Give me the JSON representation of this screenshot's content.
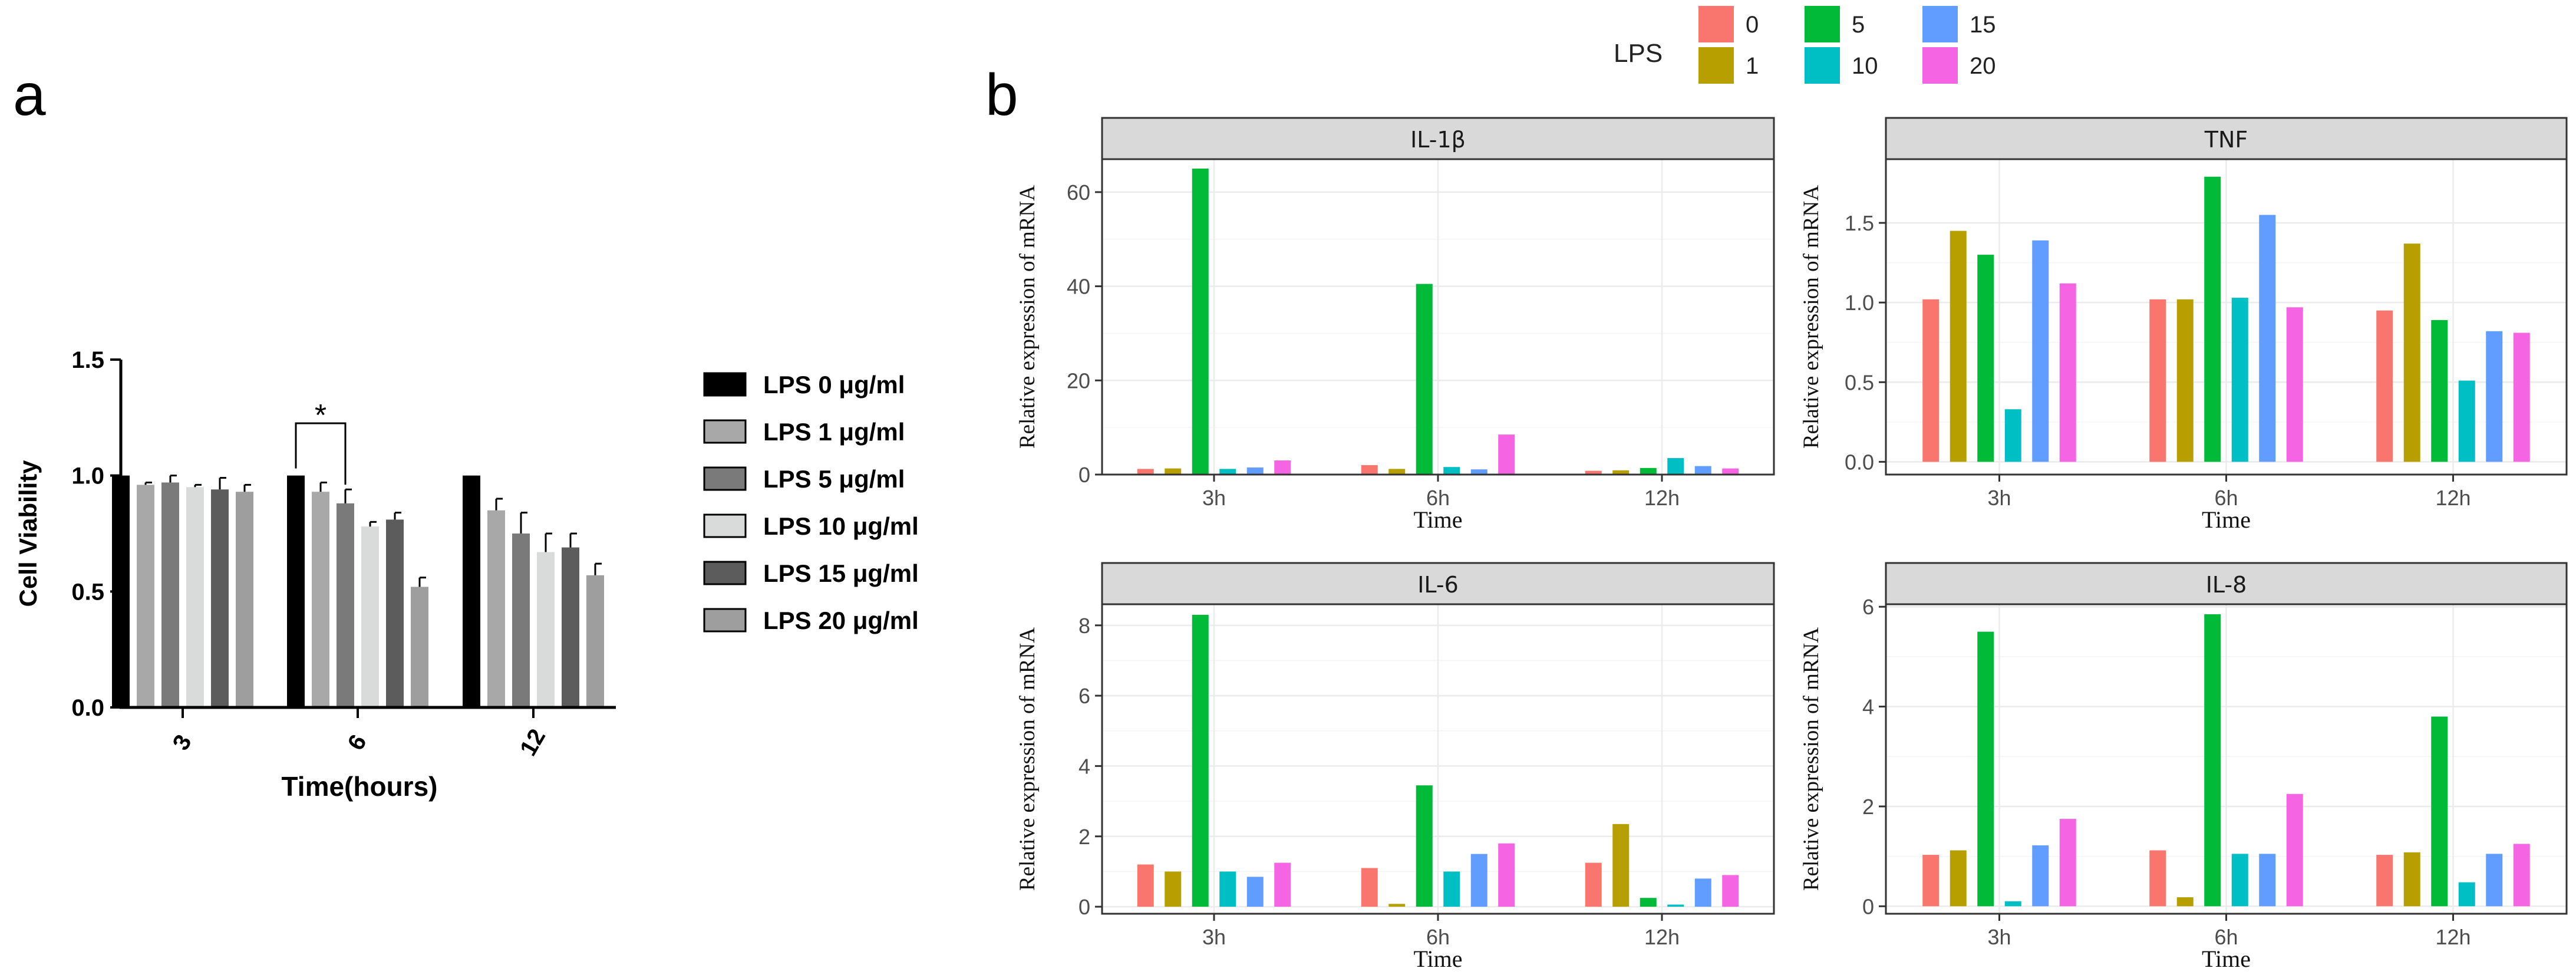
{
  "panel_a_label": "a",
  "panel_b_label": "b",
  "chart_data": [
    {
      "type": "bar",
      "panel": "a",
      "ylabel": "Cell Viability",
      "xlabel": "Time(hours)",
      "categories": [
        "3",
        "6",
        "12"
      ],
      "ylim": [
        0,
        1.5
      ],
      "yticks": [
        "0.0",
        "0.5",
        "1.0",
        "1.5"
      ],
      "significance": "*",
      "series": [
        {
          "name": "LPS 0 μg/ml",
          "color": "#000000",
          "values": [
            1.0,
            1.0,
            1.0
          ],
          "errors": [
            0,
            0,
            0
          ]
        },
        {
          "name": "LPS 1 μg/ml",
          "color": "#a8a8a8",
          "values": [
            0.96,
            0.93,
            0.85
          ],
          "errors": [
            0.01,
            0.04,
            0.05
          ]
        },
        {
          "name": "LPS 5 μg/ml",
          "color": "#7a7a7a",
          "values": [
            0.97,
            0.88,
            0.75
          ],
          "errors": [
            0.03,
            0.06,
            0.09
          ]
        },
        {
          "name": "LPS 10 μg/ml",
          "color": "#d9dbdb",
          "values": [
            0.95,
            0.78,
            0.67
          ],
          "errors": [
            0.01,
            0.02,
            0.08
          ]
        },
        {
          "name": "LPS 15 μg/ml",
          "color": "#5c5c5c",
          "values": [
            0.94,
            0.81,
            0.69
          ],
          "errors": [
            0.05,
            0.03,
            0.06
          ]
        },
        {
          "name": "LPS 20 μg/ml",
          "color": "#9e9e9e",
          "values": [
            0.93,
            0.52,
            0.57
          ],
          "errors": [
            0.03,
            0.04,
            0.05
          ]
        }
      ]
    },
    {
      "type": "bar",
      "panel": "b",
      "legend_title": "LPS",
      "legend_entries": [
        "0",
        "5",
        "15",
        "1",
        "10",
        "20"
      ],
      "xlabel": "Time",
      "ylabel": "Relative expression of mRNA",
      "categories": [
        "3h",
        "6h",
        "12h"
      ],
      "series_names": [
        "0",
        "1",
        "5",
        "10",
        "15",
        "20"
      ],
      "series_colors": [
        "#f8766d",
        "#b79f00",
        "#00ba38",
        "#00bfc4",
        "#619cff",
        "#f564e3"
      ],
      "facets": [
        {
          "title": "IL-1β",
          "ylim": [
            0,
            67
          ],
          "ytick_values": [
            0,
            20,
            40,
            60
          ],
          "ytick_labels": [
            "0",
            "20",
            "40",
            "60"
          ],
          "values": [
            [
              1.2,
              1.3,
              65,
              1.2,
              1.5,
              3.0
            ],
            [
              2.0,
              1.2,
              40.5,
              1.6,
              1.1,
              8.5
            ],
            [
              0.8,
              0.9,
              1.4,
              3.5,
              1.8,
              1.3
            ]
          ]
        },
        {
          "title": "TNF",
          "ylim": [
            -0.08,
            1.9
          ],
          "ytick_values": [
            0,
            0.5,
            1.0,
            1.5
          ],
          "ytick_labels": [
            "0.0",
            "0.5",
            "1.0",
            "1.5"
          ],
          "values": [
            [
              1.02,
              1.45,
              1.3,
              0.33,
              1.39,
              1.12
            ],
            [
              1.02,
              1.02,
              1.79,
              1.03,
              1.55,
              0.97
            ],
            [
              0.95,
              1.37,
              0.89,
              0.51,
              0.82,
              0.81
            ]
          ]
        },
        {
          "title": "IL-6",
          "ylim": [
            -0.2,
            8.6
          ],
          "ytick_values": [
            0,
            2,
            4,
            6,
            8
          ],
          "ytick_labels": [
            "0",
            "2",
            "4",
            "6",
            "8"
          ],
          "values": [
            [
              1.2,
              1.0,
              8.3,
              1.0,
              0.85,
              1.25
            ],
            [
              1.1,
              0.08,
              3.45,
              1.0,
              1.5,
              1.8
            ],
            [
              1.25,
              2.35,
              0.25,
              0.06,
              0.8,
              0.9
            ]
          ]
        },
        {
          "title": "IL-8",
          "ylim": [
            -0.15,
            6.05
          ],
          "ytick_values": [
            0,
            2,
            4,
            6
          ],
          "ytick_labels": [
            "0",
            "2",
            "4",
            "6"
          ],
          "values": [
            [
              1.03,
              1.12,
              5.5,
              0.1,
              1.22,
              1.75
            ],
            [
              1.12,
              0.18,
              5.85,
              1.05,
              1.05,
              2.25
            ],
            [
              1.03,
              1.08,
              3.8,
              0.48,
              1.05,
              1.25
            ]
          ]
        }
      ]
    }
  ]
}
